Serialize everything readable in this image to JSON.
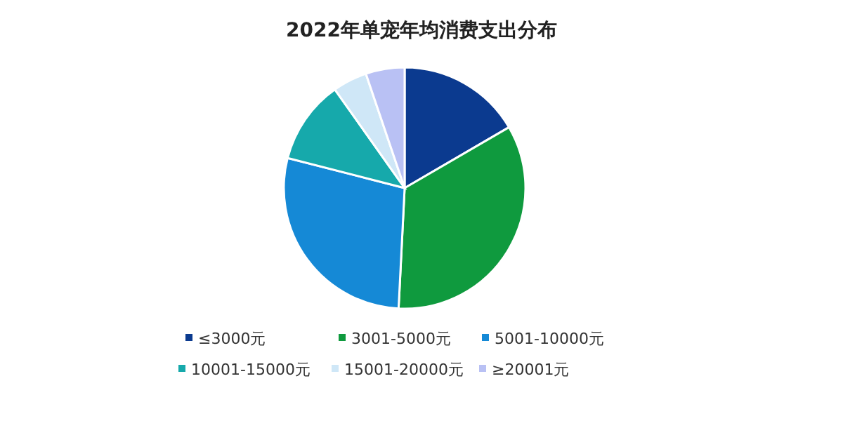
{
  "chart_data": {
    "type": "pie",
    "title": "2022年单宠年均消费支出分布",
    "categories": [
      "≤3000元",
      "3001-5000元",
      "5001-10000元",
      "10001-15000元",
      "15001-20000元",
      "≥20001元"
    ],
    "values": [
      16.6,
      34.2,
      28.2,
      11.2,
      4.6,
      5.2
    ],
    "colors": [
      "#0b3a8f",
      "#0f9a3e",
      "#1589d6",
      "#16a9ab",
      "#cfe7f7",
      "#b9c1f4"
    ],
    "legend": "bottom"
  }
}
